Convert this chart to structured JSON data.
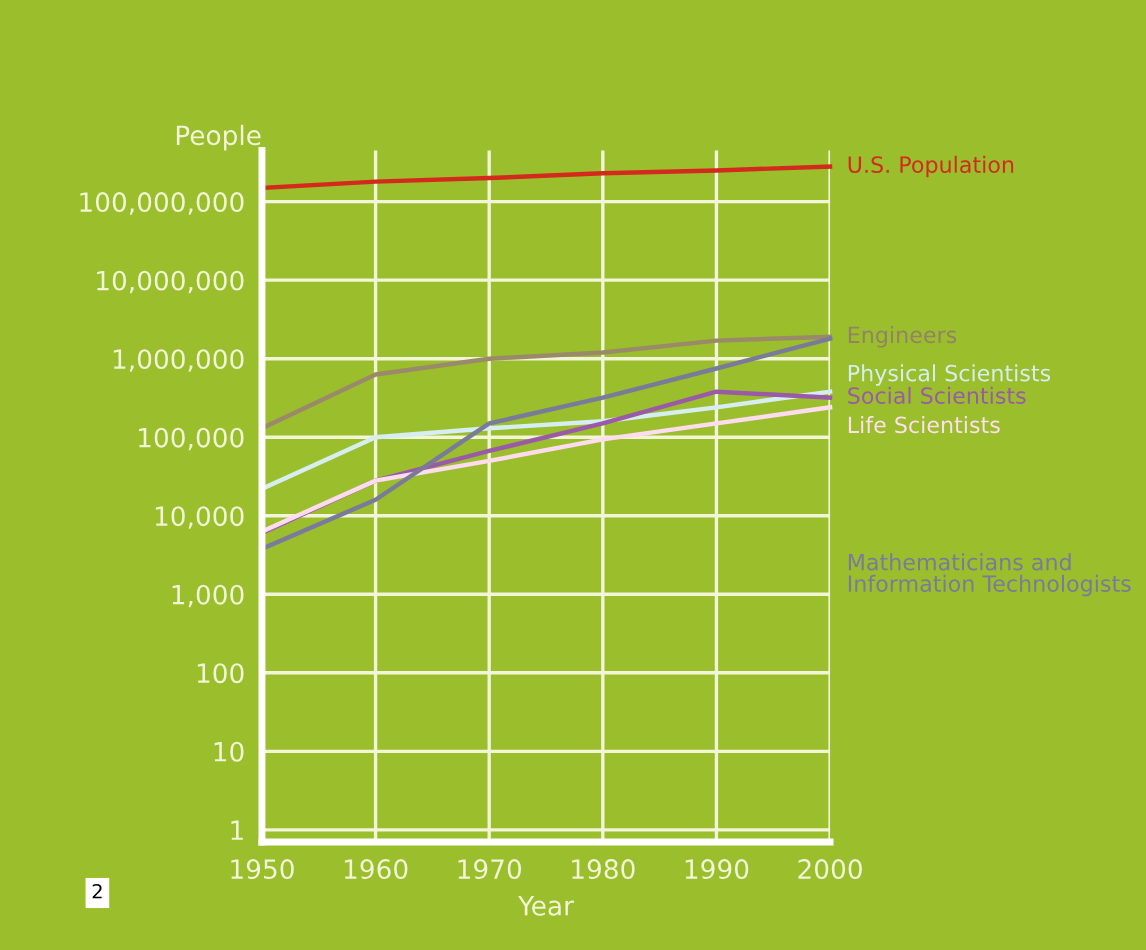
{
  "chart_data": {
    "type": "line",
    "ylabel": "People",
    "xlabel": "Year",
    "log": "y",
    "grid": true,
    "legend": false,
    "marker": "none",
    "line_style": "solid",
    "x": [
      1950,
      1960,
      1970,
      1980,
      1990,
      2000
    ],
    "xlim": [
      1950,
      2000
    ],
    "xticks": [
      1950,
      1960,
      1970,
      1980,
      1990,
      2000
    ],
    "ylim": [
      0.7,
      450000000
    ],
    "yticks": [
      {
        "value": 1,
        "label": "1"
      },
      {
        "value": 10,
        "label": "10"
      },
      {
        "value": 100,
        "label": "100"
      },
      {
        "value": 1000,
        "label": "1,000"
      },
      {
        "value": 10000,
        "label": "10,000"
      },
      {
        "value": 100000,
        "label": "100,000"
      },
      {
        "value": 1000000,
        "label": "1,000,000"
      },
      {
        "value": 10000000,
        "label": "10,000,000"
      },
      {
        "value": 100000000,
        "label": "100,000,000"
      }
    ],
    "series": [
      {
        "name": "U.S. Population",
        "color": "#d42a1e",
        "values": [
          150000000,
          180000000,
          200000000,
          230000000,
          250000000,
          280000000
        ]
      },
      {
        "name": "Engineers",
        "color": "#9a8a6a",
        "values": [
          130000,
          630000,
          1000000,
          1200000,
          1700000,
          1900000
        ]
      },
      {
        "name": "Physical Scientists",
        "color": "#d6eef2",
        "values": [
          22000,
          100000,
          130000,
          160000,
          240000,
          380000
        ]
      },
      {
        "name": "Social Scientists",
        "color": "#9b5aa8",
        "values": [
          6000,
          28000,
          67000,
          150000,
          380000,
          320000
        ]
      },
      {
        "name": "Life Scientists",
        "color": "#ffdcef",
        "values": [
          6300,
          28000,
          50000,
          94000,
          150000,
          240000
        ]
      },
      {
        "name": "Mathematicians and\nInformation Technologists",
        "color": "#7a7a9a",
        "values": [
          3800,
          16000,
          150000,
          320000,
          750000,
          1800000
        ]
      }
    ],
    "annotations": [
      "2"
    ]
  }
}
